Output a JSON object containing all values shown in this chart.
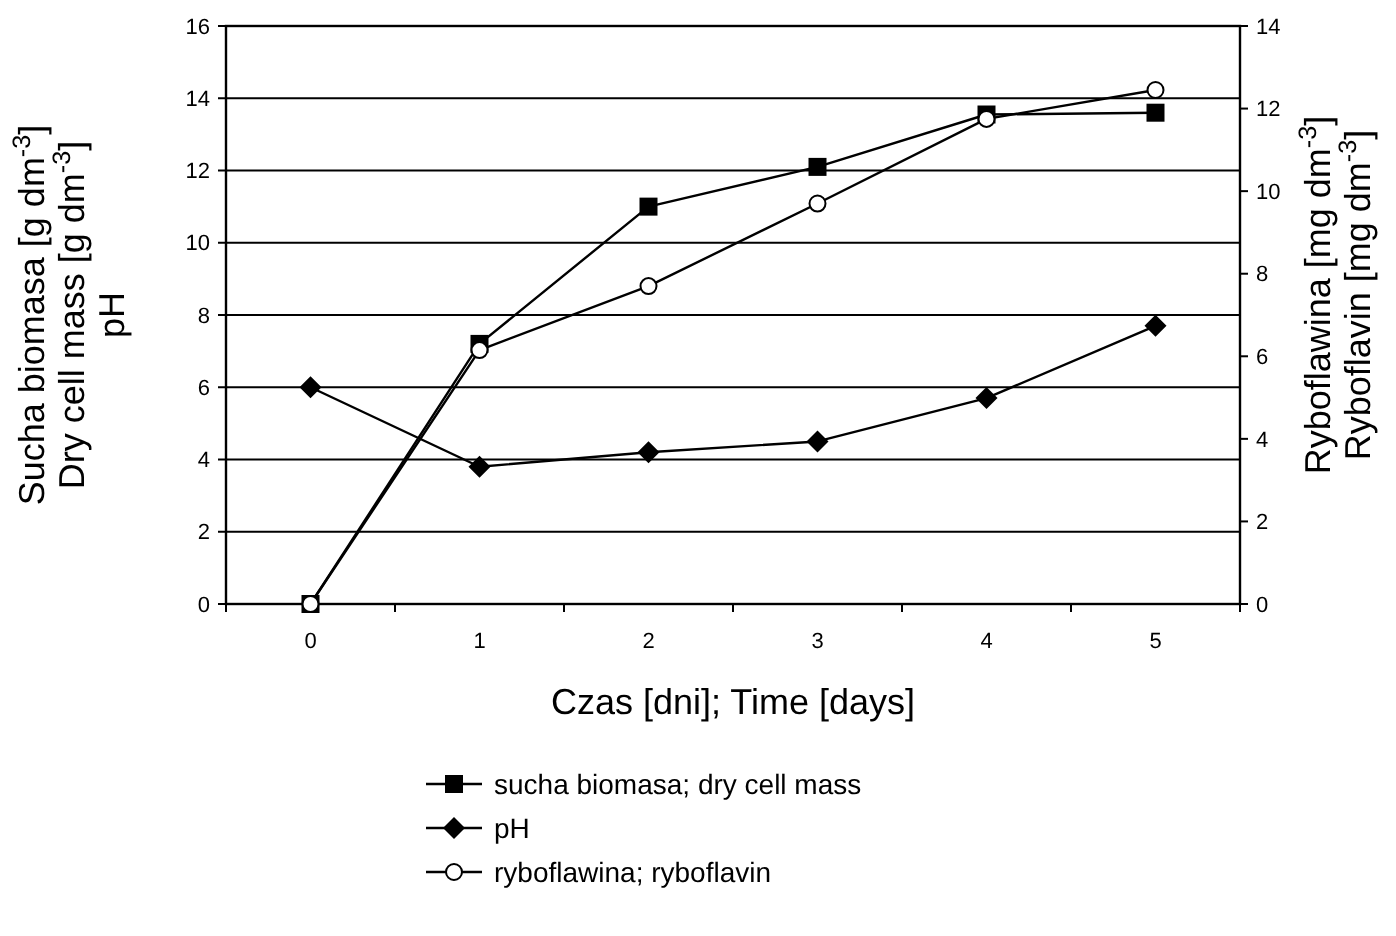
{
  "chart_data": {
    "type": "line",
    "xlabel": "Czas [dni]; Time [days]",
    "ylabel": "Sucha biomasa [g dm$^{-3}$]\nDry cell mass [g dm$^{-3}$]\npH",
    "y2label": "Ryboflawina [mg dm$^{-3}$]\nRyboflavin [mg dm$^{-3}$]",
    "categories": [
      "0",
      "1",
      "2",
      "3",
      "4",
      "5"
    ],
    "ylim": [
      0,
      16
    ],
    "yticks": [
      0,
      2,
      4,
      6,
      8,
      10,
      12,
      14,
      16
    ],
    "y2lim": [
      0,
      14
    ],
    "y2ticks": [
      0,
      2,
      4,
      6,
      8,
      10,
      12,
      14
    ],
    "grid": "y",
    "legend": "bottom",
    "series": [
      {
        "name": "sucha biomasa; dry cell mass",
        "color": "#000000",
        "marker": "square",
        "values": [
          0,
          7.2,
          11.0,
          12.1,
          13.55,
          13.6
        ]
      },
      {
        "name": "pH",
        "color": "#000000",
        "marker": "diamond",
        "values": [
          6.0,
          3.8,
          4.2,
          4.5,
          5.7,
          7.7
        ]
      },
      {
        "name": "ryboflawina; ryboflavin",
        "color": "#000000",
        "marker": "circle",
        "axis": "y2",
        "values": [
          0,
          6.15,
          7.7,
          9.7,
          11.75,
          12.45
        ]
      }
    ]
  }
}
